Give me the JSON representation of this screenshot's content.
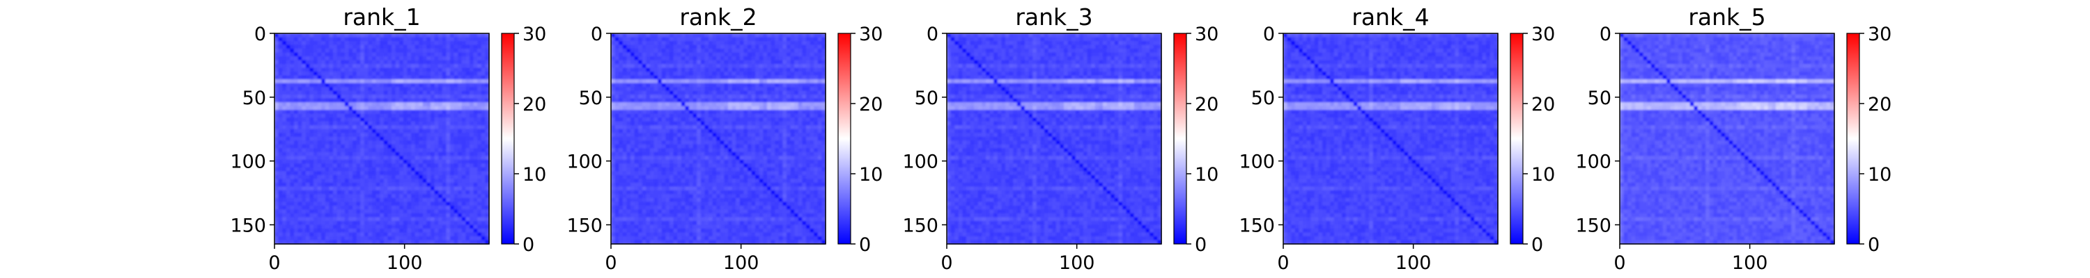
{
  "figure": {
    "background": "#ffffff"
  },
  "chart_data": [
    {
      "type": "heatmap",
      "title": "rank_1",
      "matrix_size": 165,
      "value_range": [
        0,
        30
      ],
      "x_ticks": [
        0,
        100
      ],
      "y_ticks": [
        0,
        50,
        100,
        150
      ],
      "colorbar": {
        "colormap": "bwr",
        "ticks": [
          0,
          10,
          20,
          30
        ]
      },
      "row_bands": [
        36,
        55
      ],
      "col_bands": [
        100,
        130
      ],
      "diagonal": "low",
      "typical_value": 4,
      "band_value": 8
    },
    {
      "type": "heatmap",
      "title": "rank_2",
      "matrix_size": 165,
      "value_range": [
        0,
        30
      ],
      "x_ticks": [
        0,
        100
      ],
      "y_ticks": [
        0,
        50,
        100,
        150
      ],
      "colorbar": {
        "colormap": "bwr",
        "ticks": [
          0,
          10,
          20,
          30
        ]
      },
      "row_bands": [
        36,
        55
      ],
      "col_bands": [
        100,
        130
      ],
      "diagonal": "low",
      "typical_value": 4,
      "band_value": 8
    },
    {
      "type": "heatmap",
      "title": "rank_3",
      "matrix_size": 165,
      "value_range": [
        0,
        30
      ],
      "x_ticks": [
        0,
        100
      ],
      "y_ticks": [
        0,
        50,
        100,
        150
      ],
      "colorbar": {
        "colormap": "bwr",
        "ticks": [
          0,
          10,
          20,
          30
        ]
      },
      "row_bands": [
        36,
        55
      ],
      "col_bands": [
        100,
        130
      ],
      "diagonal": "low",
      "typical_value": 4,
      "band_value": 8
    },
    {
      "type": "heatmap",
      "title": "rank_4",
      "matrix_size": 165,
      "value_range": [
        0,
        30
      ],
      "x_ticks": [
        0,
        100
      ],
      "y_ticks": [
        0,
        50,
        100,
        150
      ],
      "colorbar": {
        "colormap": "bwr",
        "ticks": [
          0,
          10,
          20,
          30
        ]
      },
      "row_bands": [
        36,
        55
      ],
      "col_bands": [
        100,
        130
      ],
      "diagonal": "low",
      "typical_value": 4,
      "band_value": 8
    },
    {
      "type": "heatmap",
      "title": "rank_5",
      "matrix_size": 165,
      "value_range": [
        0,
        30
      ],
      "x_ticks": [
        0,
        100
      ],
      "y_ticks": [
        0,
        50,
        100,
        150
      ],
      "colorbar": {
        "colormap": "bwr",
        "ticks": [
          0,
          10,
          20,
          30
        ]
      },
      "row_bands": [
        36,
        55
      ],
      "col_bands": [
        100,
        130
      ],
      "diagonal": "low",
      "typical_value": 5,
      "band_value": 10
    }
  ]
}
